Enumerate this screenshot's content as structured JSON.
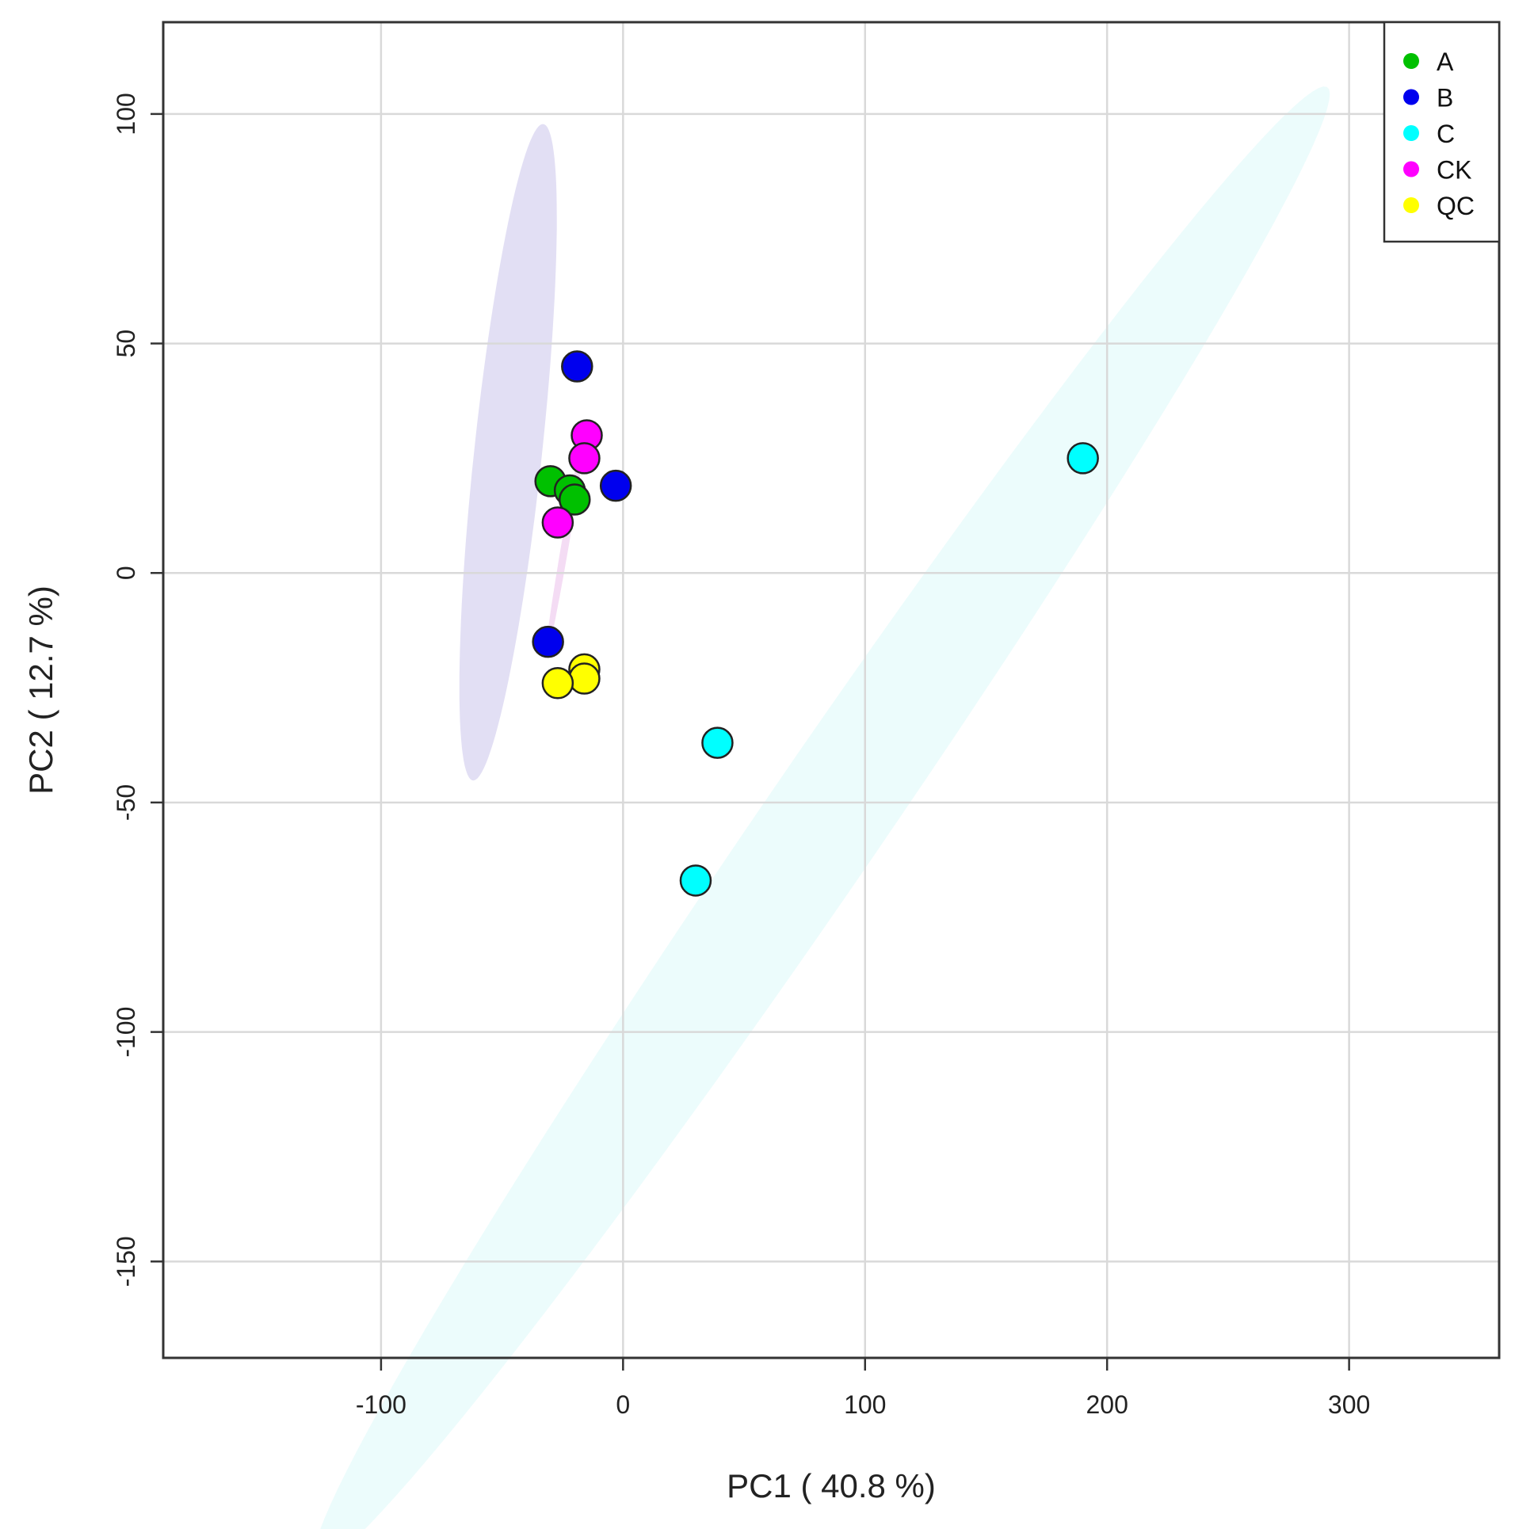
{
  "chart_data": {
    "type": "scatter",
    "title": "",
    "xlabel": "PC1 ( 40.8 %)",
    "ylabel": "PC2 ( 12.7 %)",
    "xlim": [
      -190,
      362
    ],
    "ylim": [
      -171,
      120
    ],
    "xticks": [
      -100,
      0,
      100,
      200,
      300
    ],
    "yticks": [
      100,
      50,
      0,
      -50,
      -100,
      -150
    ],
    "xtick_labels": [
      "-100",
      "0",
      "100",
      "200",
      "300"
    ],
    "ytick_labels": [
      "100",
      "50",
      "0",
      "-50",
      "-100",
      "-150"
    ],
    "grid": true,
    "legend_position": "top-right",
    "series": [
      {
        "name": "A",
        "color": "#00c000",
        "points": [
          [
            -30,
            20
          ],
          [
            -22,
            18
          ],
          [
            -20,
            16
          ]
        ]
      },
      {
        "name": "B",
        "color": "#0000ee",
        "points": [
          [
            -19,
            45
          ],
          [
            -3,
            19
          ],
          [
            -31,
            -15
          ]
        ]
      },
      {
        "name": "C",
        "color": "#00ffff",
        "points": [
          [
            190,
            25
          ],
          [
            39,
            -37
          ],
          [
            30,
            -67
          ]
        ]
      },
      {
        "name": "CK",
        "color": "#ff00ff",
        "points": [
          [
            -15,
            30
          ],
          [
            -16,
            25
          ],
          [
            -27,
            11
          ]
        ]
      },
      {
        "name": "QC",
        "color": "#ffff00",
        "points": [
          [
            -16,
            -21
          ],
          [
            -16,
            -23
          ],
          [
            -27,
            -24
          ]
        ]
      }
    ],
    "ellipses": [
      {
        "group": "B",
        "color": "#d8d4f0",
        "center": [
          -47.5,
          26.3
        ],
        "rx": 73,
        "ry": 13.8,
        "angle": 78.2
      },
      {
        "group": "C",
        "color": "#e6fbfb",
        "center": [
          82,
          -55
        ],
        "rx": 264,
        "ry": 18.4,
        "angle": 37.4
      },
      {
        "group": "CK",
        "color": "#f0d0f0",
        "center": [
          -24,
          6
        ],
        "rx": 26,
        "ry": 1.5,
        "angle": 72
      }
    ]
  }
}
